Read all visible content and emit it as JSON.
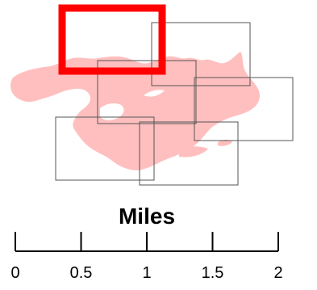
{
  "map": {
    "land_color": "#ffbfbf",
    "grid_color": "#555555",
    "highlight_color": "#ff0000",
    "index_tiles": [
      {
        "name": "tile-north-center",
        "highlighted": true
      },
      {
        "name": "tile-north-east",
        "highlighted": false
      },
      {
        "name": "tile-center",
        "highlighted": false
      },
      {
        "name": "tile-east",
        "highlighted": false
      },
      {
        "name": "tile-south-west",
        "highlighted": false
      },
      {
        "name": "tile-south-center",
        "highlighted": false
      }
    ]
  },
  "scale_bar": {
    "title": "Miles",
    "ticks": [
      "0",
      "0.5",
      "1",
      "1.5",
      "2"
    ],
    "max_value": 2
  }
}
